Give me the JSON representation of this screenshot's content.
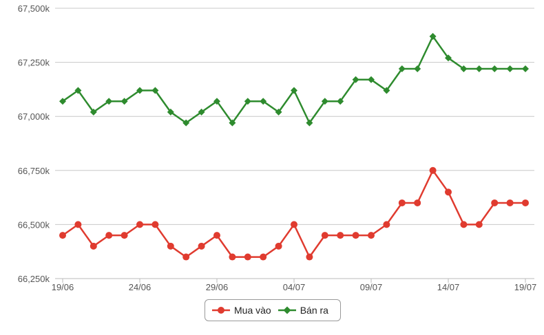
{
  "chart_data": {
    "type": "line",
    "x": [
      "19/06",
      "20/06",
      "21/06",
      "22/06",
      "23/06",
      "24/06",
      "25/06",
      "26/06",
      "27/06",
      "28/06",
      "29/06",
      "30/06",
      "01/07",
      "02/07",
      "03/07",
      "04/07",
      "05/07",
      "06/07",
      "07/07",
      "08/07",
      "09/07",
      "10/07",
      "11/07",
      "12/07",
      "13/07",
      "14/07",
      "15/07",
      "16/07",
      "17/07",
      "18/07",
      "19/07"
    ],
    "xtick_labels": [
      "19/06",
      "24/06",
      "29/06",
      "04/07",
      "09/07",
      "14/07",
      "19/07"
    ],
    "ytick_labels": [
      "66,250k",
      "66,500k",
      "66,750k",
      "67,000k",
      "67,250k",
      "67,500k"
    ],
    "ylim": [
      66250,
      67500
    ],
    "grid": true,
    "legend_position": "bottom-center",
    "series": [
      {
        "name": "Mua vào",
        "color": "#e03b2f",
        "marker": "circle",
        "values": [
          66450,
          66500,
          66400,
          66450,
          66450,
          66500,
          66500,
          66400,
          66350,
          66400,
          66450,
          66350,
          66350,
          66350,
          66400,
          66500,
          66350,
          66450,
          66450,
          66450,
          66450,
          66500,
          66600,
          66600,
          66750,
          66650,
          66500,
          66500,
          66600,
          66600,
          66600
        ]
      },
      {
        "name": "Bán ra",
        "color": "#2e8b2e",
        "marker": "diamond",
        "values": [
          67070,
          67120,
          67020,
          67070,
          67070,
          67120,
          67120,
          67020,
          66970,
          67020,
          67070,
          66970,
          67070,
          67070,
          67020,
          67120,
          66970,
          67070,
          67070,
          67170,
          67170,
          67120,
          67220,
          67220,
          67370,
          67270,
          67220,
          67220,
          67220,
          67220,
          67220
        ]
      }
    ]
  }
}
